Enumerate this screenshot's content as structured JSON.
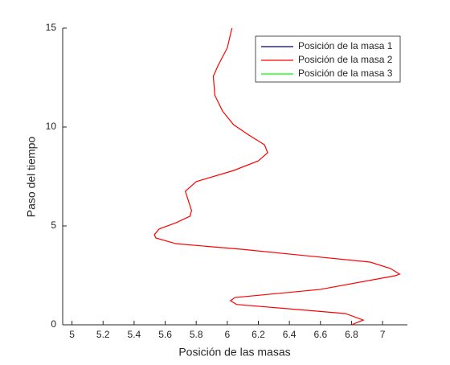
{
  "chart_data": {
    "type": "line",
    "xlabel": "Posición de las masas",
    "ylabel": "Paso del tiempo",
    "xlim": [
      4.94,
      7.16
    ],
    "xticks": [
      5,
      5.2,
      5.4,
      5.6,
      5.8,
      6,
      6.2,
      6.4,
      6.6,
      6.8,
      7
    ],
    "ylim": [
      0,
      15
    ],
    "yticks": [
      0,
      5,
      10,
      15
    ],
    "legend": "upper right",
    "series": [
      {
        "name": "Posición de la masa 1",
        "color": "#00007f",
        "x": [],
        "y": []
      },
      {
        "name": "Posición de la masa 2",
        "color": "#ff0000",
        "x": [
          6.8,
          6.876,
          6.76,
          6.06,
          6.02,
          6.05,
          6.6,
          7.08,
          7.11,
          7.05,
          6.92,
          6.09,
          5.67,
          5.54,
          5.53,
          5.56,
          5.67,
          5.76,
          5.77,
          5.73,
          5.8,
          6.04,
          6.2,
          6.26,
          6.24,
          6.14,
          6.04,
          5.97,
          5.92,
          5.91,
          5.94,
          6.0,
          6.03
        ],
        "y": [
          0,
          0.24,
          0.57,
          1.03,
          1.22,
          1.38,
          1.79,
          2.48,
          2.56,
          2.85,
          3.17,
          3.82,
          4.1,
          4.39,
          4.55,
          4.84,
          5.16,
          5.49,
          5.77,
          6.75,
          7.24,
          7.8,
          8.29,
          8.7,
          9.1,
          9.59,
          10.12,
          10.8,
          11.6,
          12.56,
          13.1,
          14.0,
          15
        ]
      },
      {
        "name": "Posición de la masa 3",
        "color": "#00ff00",
        "x": [],
        "y": []
      }
    ]
  }
}
